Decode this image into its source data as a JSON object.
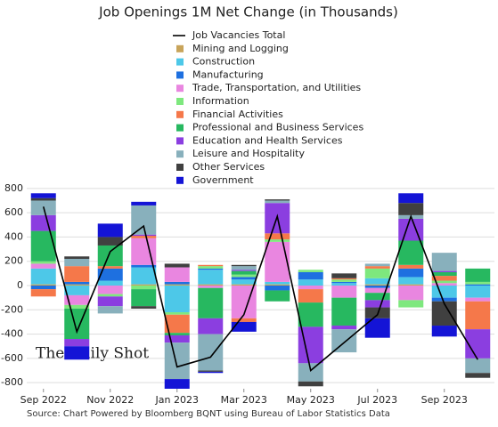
{
  "chart_data": {
    "type": "stacked-bar-line",
    "title": "Job Openings 1M Net Change (in Thousands)",
    "source": "Source: Chart Powered by Bloomberg BQNT using Bureau of Labor Statistics Data",
    "watermark": "The Daily Shot",
    "categories": [
      "Sep 2022",
      null,
      "Nov 2022",
      null,
      "Jan 2023",
      null,
      "Mar 2023",
      null,
      "May 2023",
      null,
      "Jul 2023",
      null,
      "Sep 2023",
      null
    ],
    "ylim": [
      -850,
      850
    ],
    "yticks": [
      -800,
      -600,
      -400,
      -200,
      0,
      200,
      400,
      600,
      800
    ],
    "grid": true,
    "line": {
      "name": "Job Vacancies Total",
      "color": "#000000",
      "values": [
        650,
        -380,
        280,
        490,
        -670,
        -590,
        -240,
        570,
        -700,
        -470,
        -240,
        570,
        -150,
        -610
      ]
    },
    "series": [
      {
        "name": "Mining and Logging",
        "color": "#c8a45a",
        "values": [
          10,
          10,
          0,
          10,
          10,
          10,
          10,
          10,
          0,
          0,
          10,
          10,
          0,
          0
        ]
      },
      {
        "name": "Construction",
        "color": "#4dc8e8",
        "values": [
          130,
          -80,
          40,
          140,
          -220,
          120,
          40,
          20,
          50,
          20,
          50,
          60,
          -100,
          -100
        ]
      },
      {
        "name": "Manufacturing",
        "color": "#1e70e0",
        "values": [
          -30,
          20,
          100,
          20,
          20,
          10,
          20,
          -40,
          60,
          10,
          -20,
          70,
          -30,
          10
        ]
      },
      {
        "name": "Trade, Transportation, and Utilities",
        "color": "#e986e0",
        "values": [
          40,
          -80,
          -70,
          220,
          120,
          -20,
          -270,
          330,
          -30,
          -100,
          -40,
          -120,
          20,
          -30
        ]
      },
      {
        "name": "Information",
        "color": "#7ee87e",
        "values": [
          20,
          -30,
          -20,
          -30,
          -20,
          20,
          20,
          20,
          20,
          20,
          80,
          -60,
          20,
          20
        ]
      },
      {
        "name": "Financial Activities",
        "color": "#f5784a",
        "values": [
          -60,
          130,
          20,
          20,
          -150,
          10,
          -30,
          50,
          -110,
          10,
          20,
          30,
          40,
          -230
        ]
      },
      {
        "name": "Professional and Business Services",
        "color": "#27b860",
        "values": [
          250,
          -250,
          170,
          -140,
          -20,
          -250,
          30,
          -90,
          -200,
          -230,
          -60,
          200,
          30,
          110
        ]
      },
      {
        "name": "Education and Health Services",
        "color": "#8b3ee0",
        "values": [
          130,
          -60,
          -80,
          10,
          -60,
          -130,
          10,
          250,
          -300,
          -30,
          -60,
          180,
          10,
          -240
        ]
      },
      {
        "name": "Leisure and Hospitality",
        "color": "#88b0bc",
        "values": [
          120,
          60,
          -60,
          240,
          -300,
          -300,
          30,
          20,
          -150,
          -190,
          20,
          30,
          150,
          -120
        ]
      },
      {
        "name": "Other Services",
        "color": "#404040",
        "values": [
          20,
          20,
          70,
          -20,
          30,
          -10,
          10,
          10,
          -40,
          40,
          -90,
          100,
          -200,
          -40
        ]
      },
      {
        "name": "Government",
        "color": "#1414d6",
        "values": [
          40,
          -110,
          110,
          30,
          -80,
          -10,
          -80,
          0,
          0,
          0,
          -160,
          80,
          -90,
          0
        ]
      }
    ]
  }
}
